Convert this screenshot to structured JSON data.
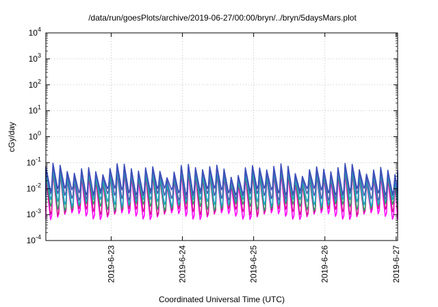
{
  "chart_data": {
    "type": "line",
    "title": "/data/run/goesPlots/archive/2019-06-27/00:00/bryn/../bryn/5daysMars.plot",
    "xlabel": "Coordinated Universal Time (UTC)",
    "ylabel": "cGy/day",
    "yscale": "log",
    "ylim": [
      0.0001,
      10000
    ],
    "xlim": [
      "2019-06-22T02:00",
      "2019-06-27T00:30"
    ],
    "grid": true,
    "y_ticks": [
      {
        "value": 0.0001,
        "base": "10",
        "exp": "-4"
      },
      {
        "value": 0.001,
        "base": "10",
        "exp": "-3"
      },
      {
        "value": 0.01,
        "base": "10",
        "exp": "-2"
      },
      {
        "value": 0.1,
        "base": "10",
        "exp": "-1"
      },
      {
        "value": 1,
        "base": "10",
        "exp": "0"
      },
      {
        "value": 10,
        "base": "10",
        "exp": "1"
      },
      {
        "value": 100,
        "base": "10",
        "exp": "2"
      },
      {
        "value": 1000,
        "base": "10",
        "exp": "3"
      },
      {
        "value": 10000,
        "base": "10",
        "exp": "4"
      }
    ],
    "x_ticks": [
      {
        "value": "2019-06-23T00:00",
        "label": "2019-6-23"
      },
      {
        "value": "2019-06-24T00:00",
        "label": "2019-6-24"
      },
      {
        "value": "2019-06-25T00:00",
        "label": "2019-6-25"
      },
      {
        "value": "2019-06-26T00:00",
        "label": "2019-6-26"
      },
      {
        "value": "2019-06-27T00:00",
        "label": "2019-6-27"
      }
    ],
    "pattern": {
      "period_hours": 2.4,
      "first_peak": "2019-06-22T02:00",
      "peak_values": [
        0.06,
        0.05,
        0.04,
        0.035,
        0.032,
        0.03
      ],
      "trough_values": [
        0.008,
        0.005,
        0.003,
        0.002,
        0.0013,
        0.0009
      ]
    },
    "series": [
      {
        "color": "#3b4db8"
      },
      {
        "color": "#4a5fb0"
      },
      {
        "color": "#1fa5c9"
      },
      {
        "color": "#2f9e6a"
      },
      {
        "color": "#d4168f"
      },
      {
        "color": "#ff00ff"
      }
    ]
  }
}
